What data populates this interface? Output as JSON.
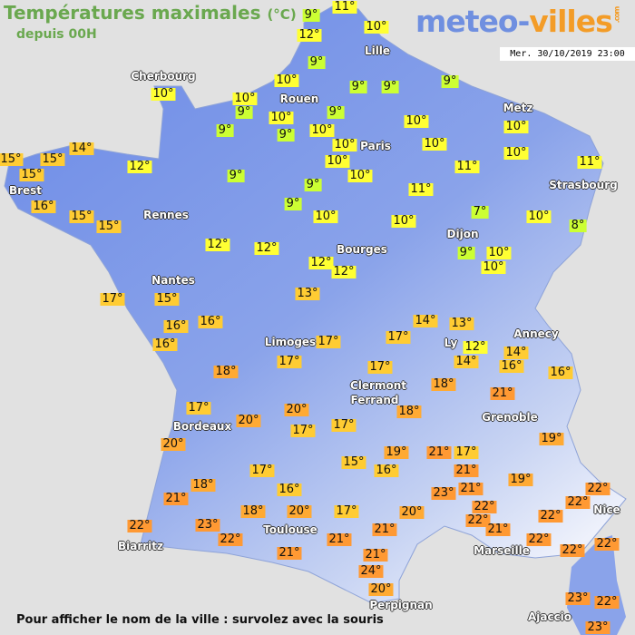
{
  "header": {
    "title": "Températures maximales",
    "unit": "(°C)",
    "subtitle": "depuis 00H"
  },
  "logo": {
    "part1": "meteo-",
    "part2": "villes",
    "suffix": ".com"
  },
  "datetime": "Mer. 30/10/2019 23:00",
  "footer": "Pour afficher le nom de la ville : survolez avec la souris",
  "colors": {
    "background": "#e1e1e1",
    "land": "#6f8fe8",
    "title": "#6aa84f",
    "cold": "#ccff33",
    "cool": "#ffff33",
    "mild": "#ffcc33",
    "warm": "#ffaa33",
    "hot": "#ff9933"
  },
  "cities": [
    "Lille",
    "Cherbourg",
    "Rouen",
    "Metz",
    "Paris",
    "Brest",
    "Strasbourg",
    "Rennes",
    "Dijon",
    "Bourges",
    "Nantes",
    "Annecy",
    "Limoges",
    "Ly",
    "Clermont",
    "Ferrand",
    "Grenoble",
    "Bordeaux",
    "Toulouse",
    "Nice",
    "Biarritz",
    "Marseille",
    "Perpignan",
    "Ajaccio"
  ],
  "temperatures": [
    11,
    9,
    10,
    12,
    9,
    10,
    9,
    9,
    9,
    10,
    10,
    9,
    10,
    9,
    9,
    9,
    10,
    10,
    10,
    10,
    10,
    10,
    14,
    15,
    15,
    15,
    12,
    9,
    11,
    11,
    10,
    10,
    9,
    11,
    9,
    16,
    15,
    15,
    10,
    10,
    7,
    10,
    8,
    12,
    12,
    12,
    12,
    9,
    10,
    10,
    17,
    15,
    13,
    16,
    16,
    16,
    17,
    14,
    13,
    17,
    12,
    14,
    14,
    16,
    16,
    18,
    17,
    17,
    18,
    21,
    17,
    20,
    18,
    20,
    17,
    17,
    20,
    19,
    19,
    21,
    17,
    15,
    16,
    21,
    17,
    18,
    16,
    23,
    21,
    19,
    21,
    22,
    22,
    22,
    22,
    23,
    18,
    20,
    17,
    20,
    22,
    21,
    22,
    22,
    21,
    21,
    21,
    22,
    22,
    22,
    21,
    24,
    20,
    23,
    22,
    23
  ],
  "temperature_unit": "°"
}
